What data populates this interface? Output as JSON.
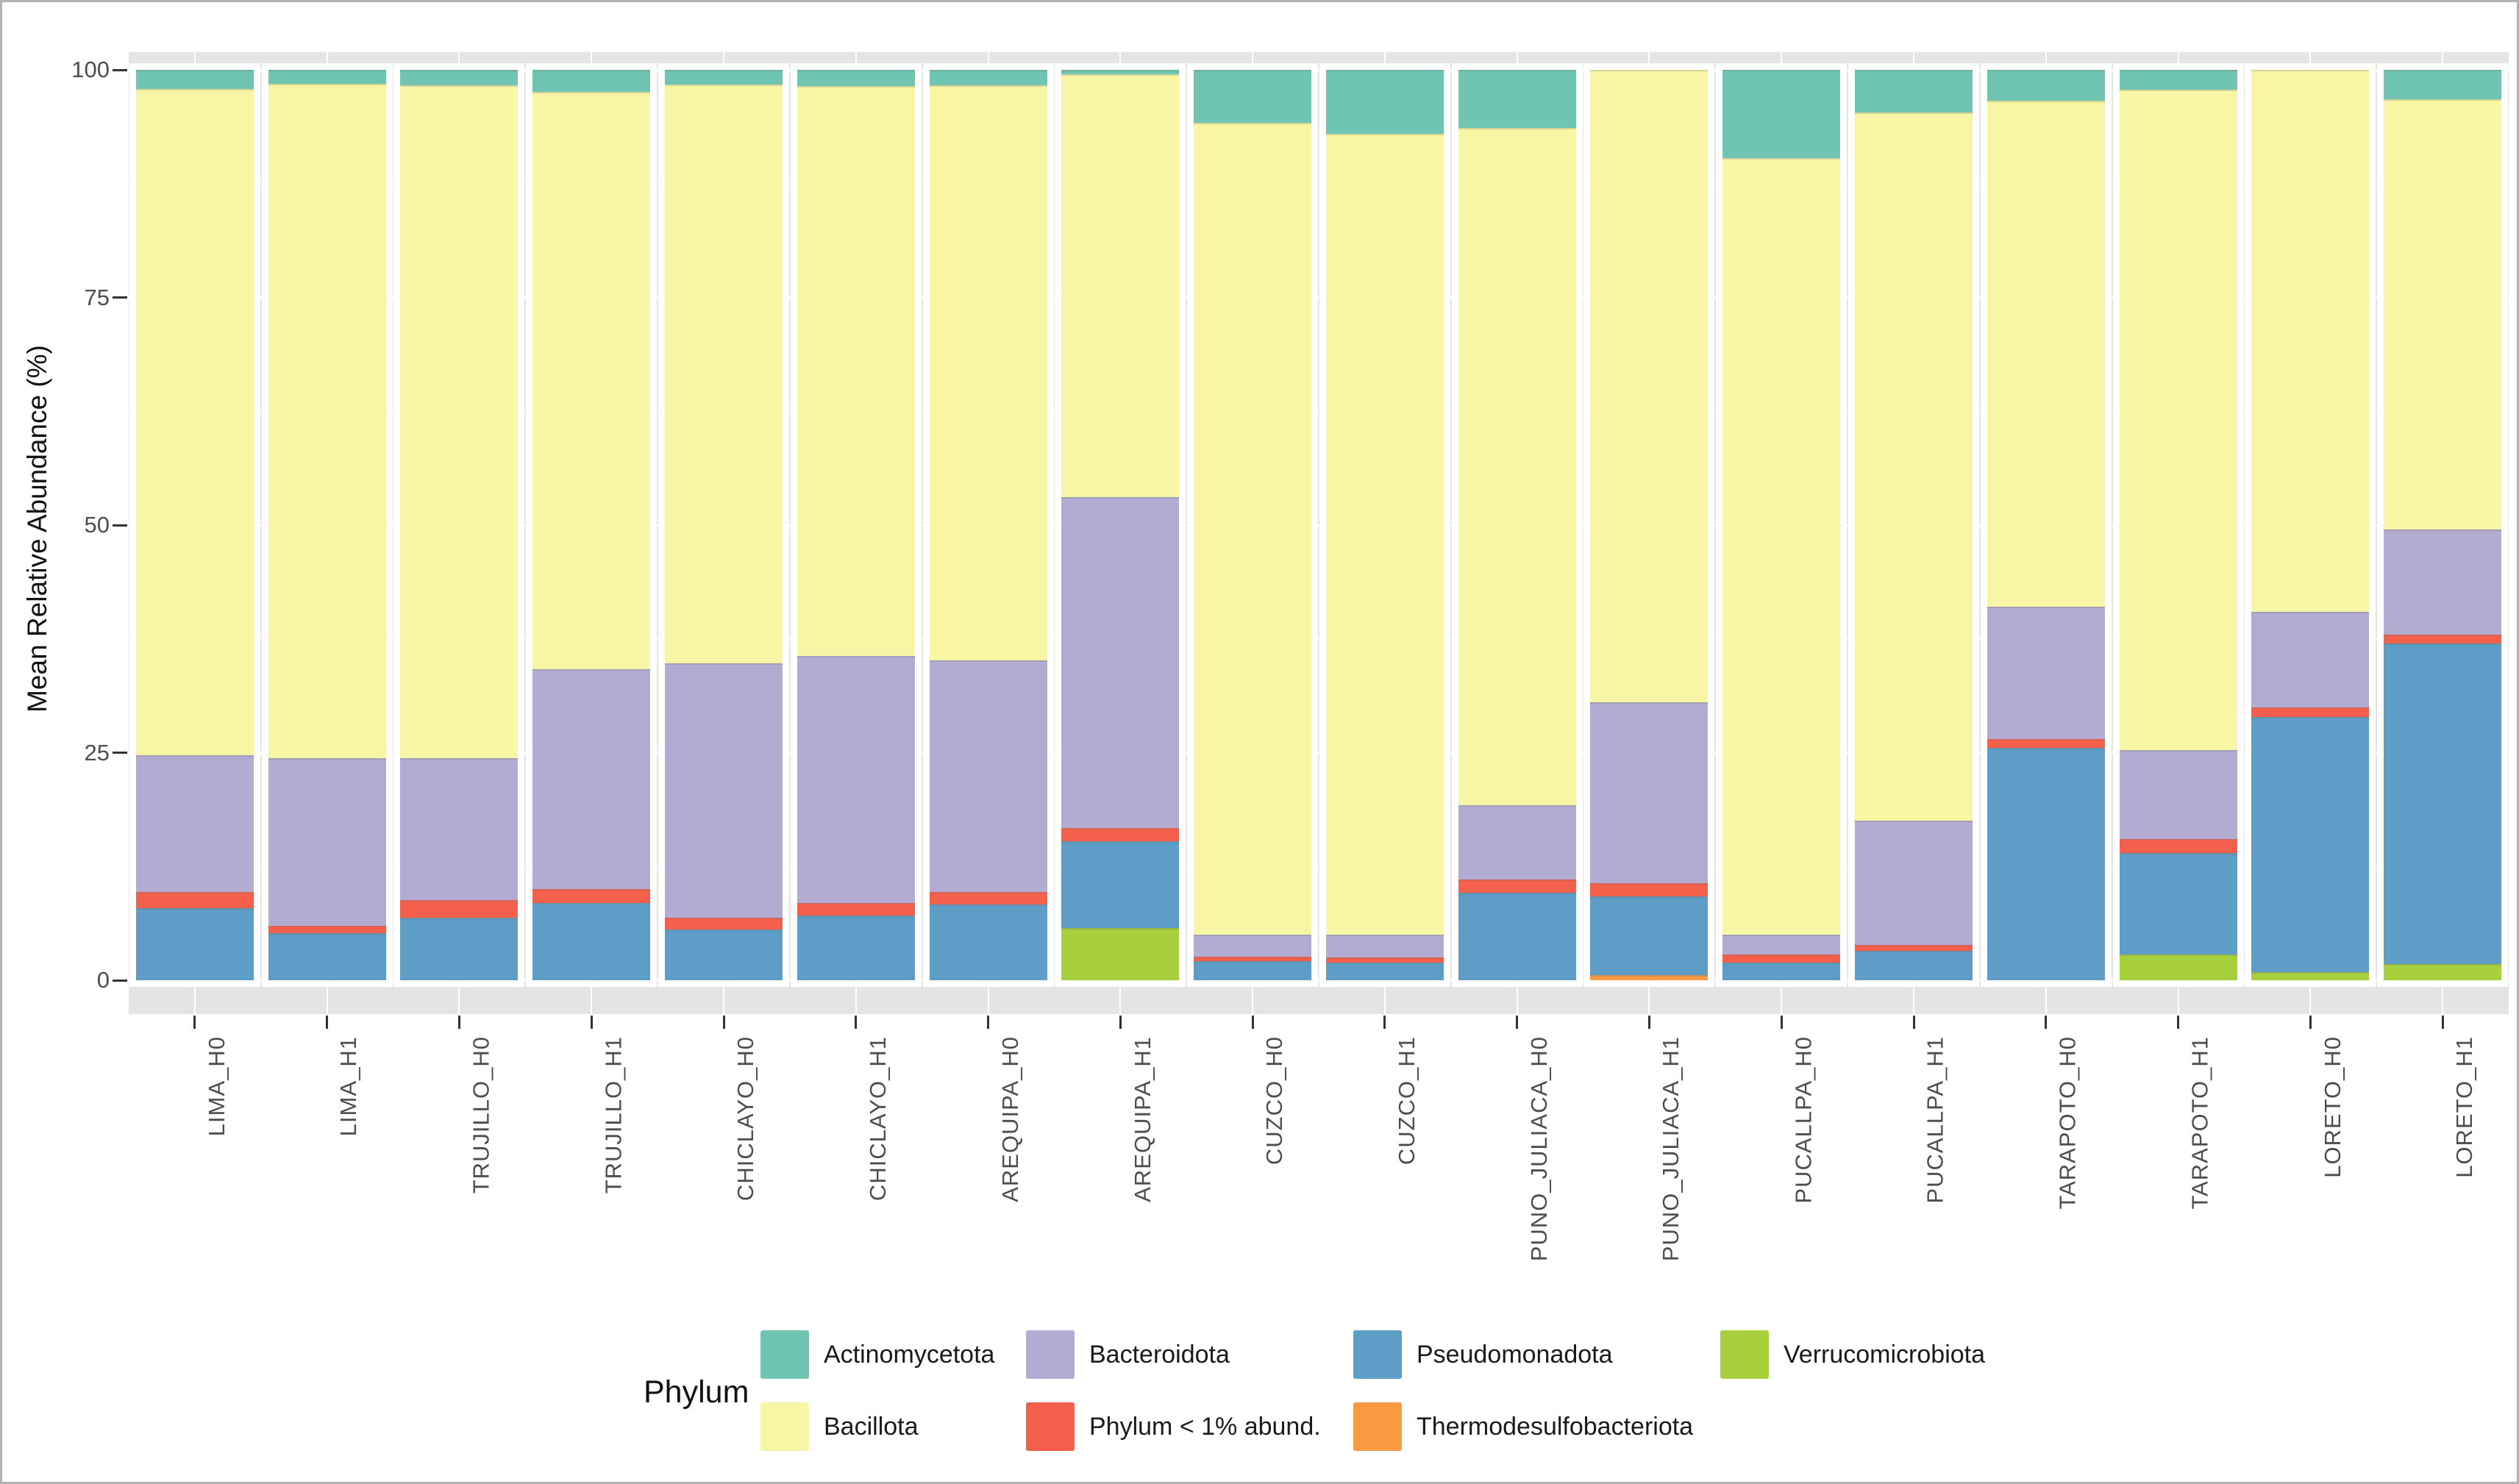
{
  "y_axis": {
    "title": "Mean Relative Abundance (%)",
    "ticks": [
      0,
      25,
      50,
      75,
      100
    ]
  },
  "legend": {
    "title": "Phylum",
    "columns": [
      [
        "Actinomycetota",
        "Bacillota"
      ],
      [
        "Bacteroidota",
        "Phylum < 1% abund."
      ],
      [
        "Pseudomonadota",
        "Thermodesulfobacteriota"
      ],
      [
        "Verrucomicrobiota"
      ]
    ]
  },
  "colors": {
    "Actinomycetota": "#6fc5b1",
    "Bacillota": "#f8f6a4",
    "Bacteroidota": "#b2acd3",
    "Phylum < 1% abund.": "#f4604c",
    "Pseudomonadota": "#5e9ec6",
    "Thermodesulfobacteriota": "#f89a40",
    "Verrucomicrobiota": "#a6d03c",
    "panel_background": "#e5e4e3",
    "gridline": "#ffffff",
    "tick_text": "#4d4d4d"
  },
  "chart_data": {
    "type": "bar",
    "stacked": true,
    "title": "",
    "xlabel": "",
    "ylabel": "Mean Relative Abundance (%)",
    "ylim": [
      0,
      100
    ],
    "grid": true,
    "legend_position": "bottom",
    "legend_title": "Phylum",
    "categories": [
      "LIMA_H0",
      "LIMA_H1",
      "TRUJILLO_H0",
      "TRUJILLO_H1",
      "CHICLAYO_H0",
      "CHICLAYO_H1",
      "AREQUIPA_H0",
      "AREQUIPA_H1",
      "CUZCO_H0",
      "CUZCO_H1",
      "PUNO_JULIACA_H0",
      "PUNO_JULIACA_H1",
      "PUCALLPA_H0",
      "PUCALLPA_H1",
      "TARAPOTO_H0",
      "TARAPOTO_H1",
      "LORETO_H0",
      "LORETO_H1"
    ],
    "stack_order_note": "series listed bottom-to-top of each stacked bar, values are percent",
    "series": [
      {
        "name": "Verrucomicrobiota",
        "values": [
          0,
          0,
          0,
          0,
          0,
          0,
          0,
          5.7,
          0,
          0,
          0,
          0,
          0,
          0,
          0,
          2.8,
          0.9,
          1.8
        ]
      },
      {
        "name": "Thermodesulfobacteriota",
        "values": [
          0,
          0,
          0,
          0,
          0,
          0,
          0,
          0,
          0,
          0,
          0,
          0.6,
          0,
          0,
          0,
          0,
          0,
          0
        ]
      },
      {
        "name": "Pseudomonadota",
        "values": [
          7.9,
          5.2,
          6.9,
          8.5,
          5.6,
          7.1,
          8.3,
          9.6,
          2.1,
          1.9,
          9.6,
          8.6,
          1.9,
          3.2,
          25.5,
          11.2,
          28.0,
          35.2
        ]
      },
      {
        "name": "Phylum < 1% abund.",
        "values": [
          1.8,
          0.8,
          1.9,
          1.5,
          1.3,
          1.4,
          1.4,
          1.4,
          0.5,
          0.6,
          1.5,
          1.5,
          0.9,
          0.7,
          1.0,
          1.5,
          1.1,
          1.0
        ]
      },
      {
        "name": "Bacteroidota",
        "values": [
          15.0,
          18.4,
          15.6,
          24.2,
          27.9,
          27.1,
          25.4,
          36.4,
          2.4,
          2.5,
          8.1,
          19.8,
          2.2,
          13.6,
          14.5,
          9.8,
          10.5,
          11.5
        ]
      },
      {
        "name": "Bacillota",
        "values": [
          73.2,
          74.1,
          73.9,
          63.4,
          63.6,
          62.6,
          63.2,
          46.4,
          89.2,
          88.0,
          74.4,
          69.5,
          85.3,
          77.8,
          55.6,
          72.5,
          59.5,
          47.3
        ]
      },
      {
        "name": "Actinomycetota",
        "values": [
          2.1,
          1.5,
          1.7,
          2.4,
          1.6,
          1.8,
          1.7,
          0.5,
          5.8,
          7.0,
          6.4,
          0,
          9.7,
          4.7,
          3.4,
          2.2,
          0,
          3.2
        ]
      }
    ]
  }
}
